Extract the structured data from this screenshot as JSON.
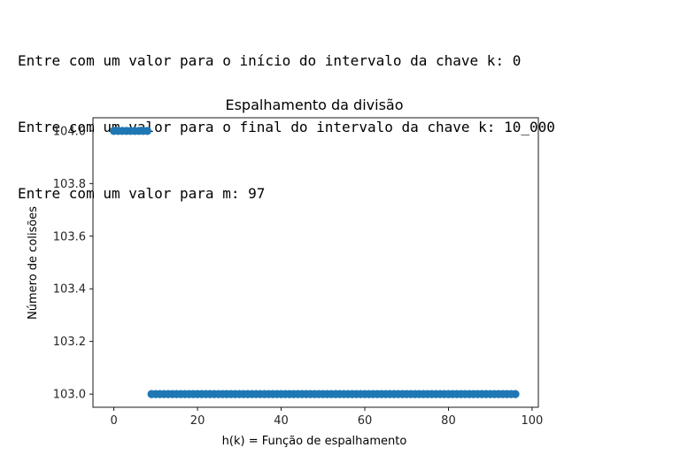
{
  "console": {
    "lines": [
      "Entre com um valor para o início do intervalo da chave k: 0",
      "Entre com um valor para o final do intervalo da chave k: 10_000",
      "Entre com um valor para m: 97"
    ]
  },
  "colors": {
    "marker": "#1f77b4",
    "axis": "#000000",
    "text": "#262626"
  },
  "chart_data": {
    "type": "scatter",
    "title": "Espalhamento da divisão",
    "xlabel": "h(k) = Função de espalhamento",
    "ylabel": "Número de colisões",
    "xlim": [
      -5,
      101.5
    ],
    "ylim": [
      102.95,
      104.05
    ],
    "xticks": [
      0,
      20,
      40,
      60,
      80,
      100
    ],
    "xtick_labels": [
      "0",
      "20",
      "40",
      "60",
      "80",
      "100"
    ],
    "yticks": [
      103.0,
      103.2,
      103.4,
      103.6,
      103.8,
      104.0
    ],
    "ytick_labels": [
      "103.0",
      "103.2",
      "103.4",
      "103.6",
      "103.8",
      "104.0"
    ],
    "grid": false,
    "series": [
      {
        "x": [
          0,
          1,
          2,
          3,
          4,
          5,
          6,
          7,
          8,
          9,
          10,
          11,
          12,
          13,
          14,
          15,
          16,
          17,
          18,
          19,
          20,
          21,
          22,
          23,
          24,
          25,
          26,
          27,
          28,
          29,
          30,
          31,
          32,
          33,
          34,
          35,
          36,
          37,
          38,
          39,
          40,
          41,
          42,
          43,
          44,
          45,
          46,
          47,
          48,
          49,
          50,
          51,
          52,
          53,
          54,
          55,
          56,
          57,
          58,
          59,
          60,
          61,
          62,
          63,
          64,
          65,
          66,
          67,
          68,
          69,
          70,
          71,
          72,
          73,
          74,
          75,
          76,
          77,
          78,
          79,
          80,
          81,
          82,
          83,
          84,
          85,
          86,
          87,
          88,
          89,
          90,
          91,
          92,
          93,
          94,
          95,
          96
        ],
        "y": [
          104,
          104,
          104,
          104,
          104,
          104,
          104,
          104,
          104,
          103,
          103,
          103,
          103,
          103,
          103,
          103,
          103,
          103,
          103,
          103,
          103,
          103,
          103,
          103,
          103,
          103,
          103,
          103,
          103,
          103,
          103,
          103,
          103,
          103,
          103,
          103,
          103,
          103,
          103,
          103,
          103,
          103,
          103,
          103,
          103,
          103,
          103,
          103,
          103,
          103,
          103,
          103,
          103,
          103,
          103,
          103,
          103,
          103,
          103,
          103,
          103,
          103,
          103,
          103,
          103,
          103,
          103,
          103,
          103,
          103,
          103,
          103,
          103,
          103,
          103,
          103,
          103,
          103,
          103,
          103,
          103,
          103,
          103,
          103,
          103,
          103,
          103,
          103,
          103,
          103,
          103,
          103,
          103,
          103,
          103,
          103,
          103
        ]
      }
    ]
  }
}
